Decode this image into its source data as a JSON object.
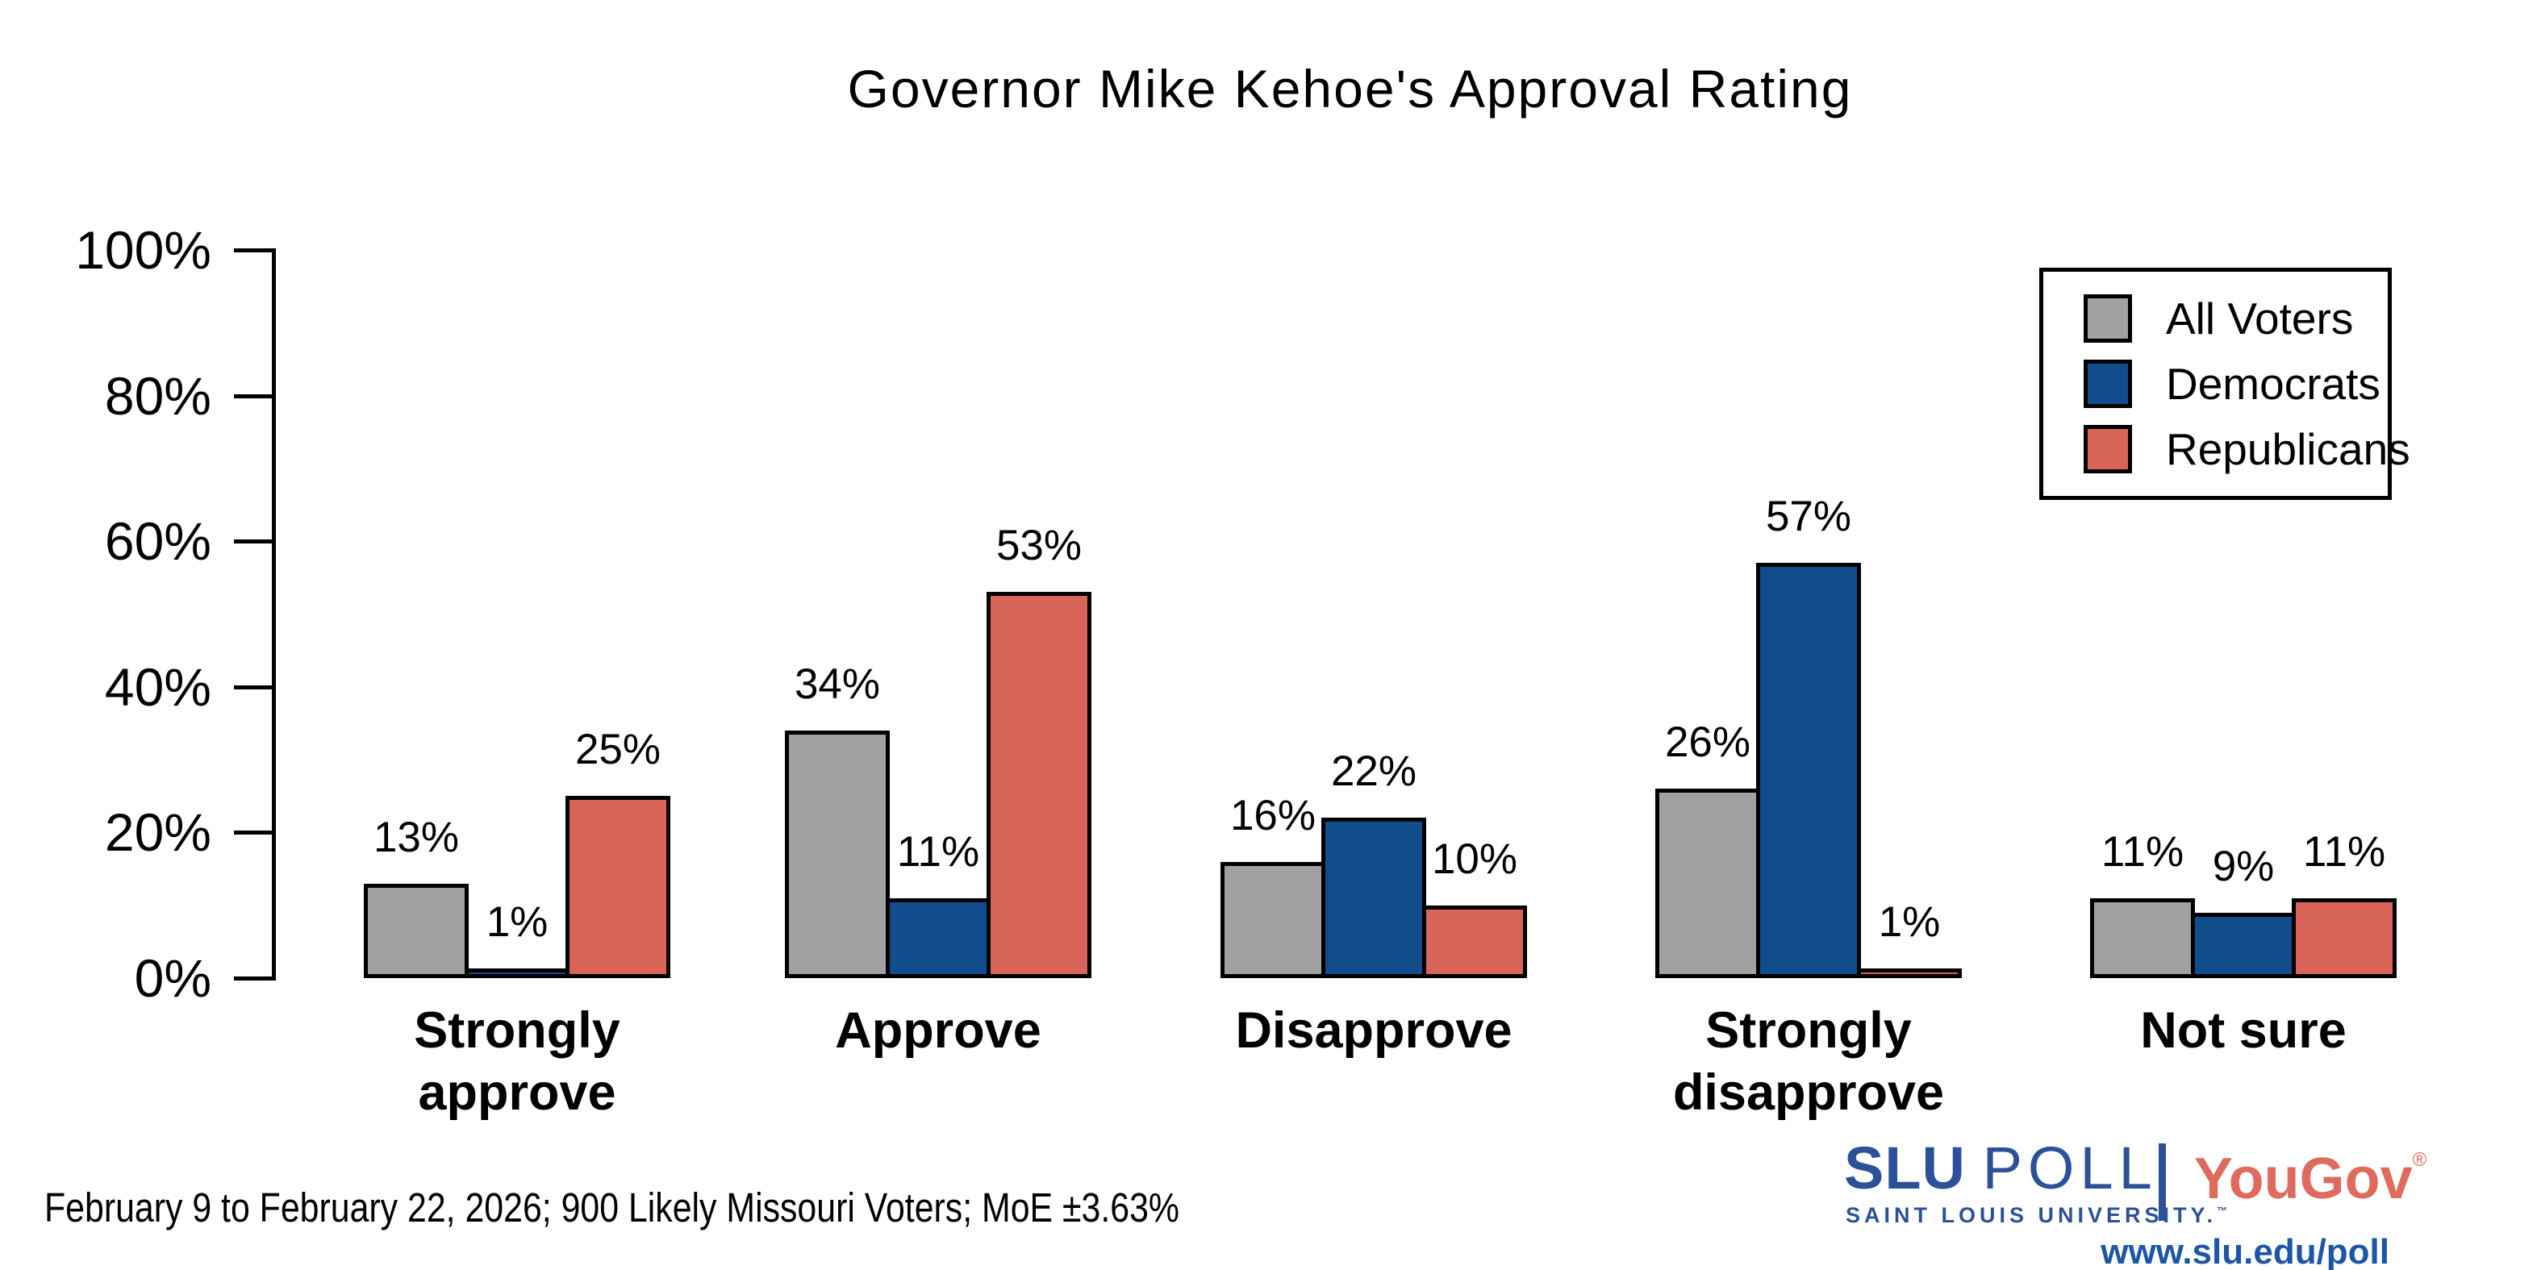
{
  "title": "Governor Mike Kehoe's Approval Rating",
  "footnote": "February 9 to February 22, 2026; 900 Likely Missouri Voters; MoE ±3.63%",
  "chart_data": {
    "type": "bar",
    "title": "Governor Mike Kehoe's Approval Rating",
    "categories": [
      "Strongly approve",
      "Approve",
      "Disapprove",
      "Strongly disapprove",
      "Not sure"
    ],
    "series": [
      {
        "name": "All Voters",
        "color": "#A1A1A1",
        "values": [
          13,
          34,
          16,
          26,
          11
        ]
      },
      {
        "name": "Democrats",
        "color": "#114D8D",
        "values": [
          1,
          11,
          22,
          57,
          9
        ]
      },
      {
        "name": "Republicans",
        "color": "#D96558",
        "values": [
          25,
          53,
          10,
          1,
          11
        ]
      }
    ],
    "value_suffix": "%",
    "value_labels": true,
    "xlabel": "",
    "ylabel": "",
    "yticks": [
      "0%",
      "20%",
      "40%",
      "60%",
      "80%",
      "100%"
    ],
    "ylim": [
      0,
      100
    ],
    "grid": false,
    "legend_position": "upper right",
    "bar_outline_color": "#000000"
  },
  "logo": {
    "slu": "SLU",
    "poll": "POLL",
    "university": "SAINT LOUIS UNIVERSITY.",
    "university_tm": "™",
    "yougov": "YouGov",
    "yougov_reg": "®",
    "url": "www.slu.edu/poll"
  }
}
